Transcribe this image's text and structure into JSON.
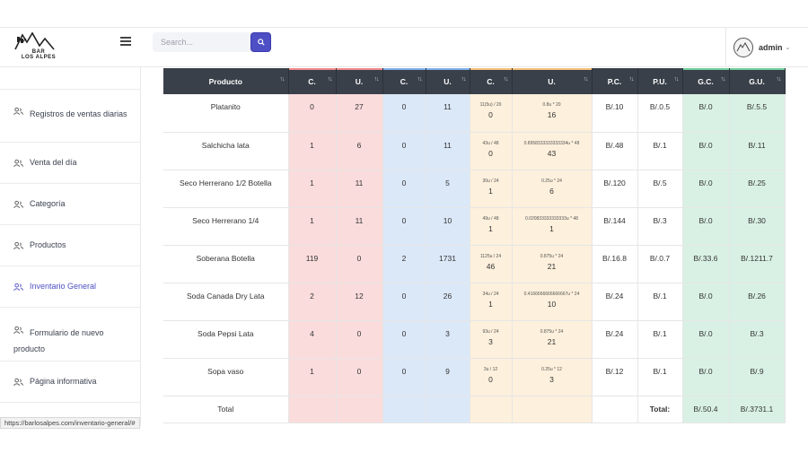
{
  "header": {
    "logo_text_line1": "BAR",
    "logo_text_line2": "LOS ALPES",
    "search_placeholder": "Search...",
    "user_name": "admin"
  },
  "sidebar": {
    "items": [
      {
        "label": "Registros de ventas diarias",
        "icon": "users-icon"
      },
      {
        "label": "Venta del día",
        "icon": "users-icon"
      },
      {
        "label": "Categoría",
        "icon": "users-icon"
      },
      {
        "label": "Productos",
        "icon": "users-icon"
      },
      {
        "label": "Inventario General",
        "icon": "users-icon",
        "active": true
      },
      {
        "label": "Formulario de nuevo producto",
        "icon": "users-icon"
      },
      {
        "label": "Página informativa",
        "icon": "users-icon"
      }
    ]
  },
  "table": {
    "headers": [
      "Producto",
      "C.",
      "U.",
      "C.",
      "U.",
      "C.",
      "U.",
      "P.C.",
      "P.U.",
      "G.C.",
      "G.U."
    ],
    "header_colors": [
      "#3a4049",
      "#f08a8a",
      "#f08a8a",
      "#7fb1ea",
      "#7fb1ea",
      "#f3c27a",
      "#f3c27a",
      "#3a4049",
      "#3a4049",
      "#6fcf9b",
      "#6fcf9b"
    ],
    "rows": [
      {
        "producto": "Platanito",
        "c1": "0",
        "u1": "27",
        "c2": "0",
        "u2": "11",
        "c3_top": "11(5u) / 20",
        "c3": "0",
        "u3_top": "0.8u * 20",
        "u3": "16",
        "pc": "B/.10",
        "pu": "B/.0.5",
        "gc": "B/.0",
        "gu": "B/.5.5"
      },
      {
        "producto": "Salchicha lata",
        "c1": "1",
        "u1": "6",
        "c2": "0",
        "u2": "11",
        "c3_top": "43u / 48",
        "c3": "0",
        "u3_top": "0.8958333333333334u * 48",
        "u3": "43",
        "pc": "B/.48",
        "pu": "B/.1",
        "gc": "B/.0",
        "gu": "B/.11"
      },
      {
        "producto": "Seco Herrerano 1/2 Botella",
        "c1": "1",
        "u1": "11",
        "c2": "0",
        "u2": "5",
        "c3_top": "30u / 24",
        "c3": "1",
        "u3_top": "0.25u * 24",
        "u3": "6",
        "pc": "B/.120",
        "pu": "B/.5",
        "gc": "B/.0",
        "gu": "B/.25"
      },
      {
        "producto": "Seco Herrerano 1/4",
        "c1": "1",
        "u1": "11",
        "c2": "0",
        "u2": "10",
        "c3_top": "49u / 48",
        "c3": "1",
        "u3_top": "0.020833333333333u * 48",
        "u3": "1",
        "pc": "B/.144",
        "pu": "B/.3",
        "gc": "B/.0",
        "gu": "B/.30"
      },
      {
        "producto": "Soberana Botella",
        "c1": "119",
        "u1": "0",
        "c2": "2",
        "u2": "1731",
        "c3_top": "1125u / 24",
        "c3": "46",
        "u3_top": "0.875u * 24",
        "u3": "21",
        "pc": "B/.16.8",
        "pu": "B/.0.7",
        "gc": "B/.33.6",
        "gu": "B/.1211.7"
      },
      {
        "producto": "Soda Canada Dry Lata",
        "c1": "2",
        "u1": "12",
        "c2": "0",
        "u2": "26",
        "c3_top": "34u / 24",
        "c3": "1",
        "u3_top": "0.4166666666666667u * 24",
        "u3": "10",
        "pc": "B/.24",
        "pu": "B/.1",
        "gc": "B/.0",
        "gu": "B/.26"
      },
      {
        "producto": "Soda Pepsi Lata",
        "c1": "4",
        "u1": "0",
        "c2": "0",
        "u2": "3",
        "c3_top": "93u / 24",
        "c3": "3",
        "u3_top": "0.875u * 24",
        "u3": "21",
        "pc": "B/.24",
        "pu": "B/.1",
        "gc": "B/.0",
        "gu": "B/.3"
      },
      {
        "producto": "Sopa vaso",
        "c1": "1",
        "u1": "0",
        "c2": "0",
        "u2": "9",
        "c3_top": "3u / 12",
        "c3": "0",
        "u3_top": "0.25u * 12",
        "u3": "3",
        "pc": "B/.12",
        "pu": "B/.1",
        "gc": "B/.0",
        "gu": "B/.9"
      }
    ],
    "total_row": {
      "label": "Total",
      "total_label": "Total:",
      "gc": "B/.50.4",
      "gu": "B/.3731.1"
    }
  },
  "status_url": "https://barlosalpes.com/inventario-general/#"
}
